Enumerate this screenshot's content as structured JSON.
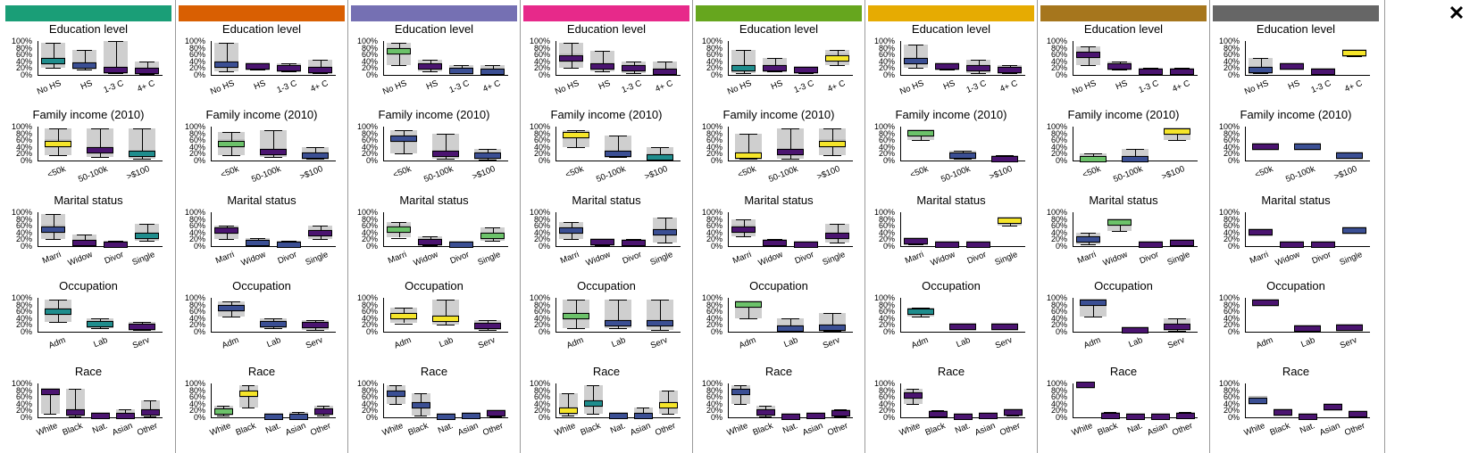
{
  "close_label": "✕",
  "cluster_colors": [
    "#1a9e77",
    "#d95f02",
    "#7570b3",
    "#e7298a",
    "#66a61e",
    "#e6ab02",
    "#a6761d",
    "#666666"
  ],
  "chart_data": {
    "type": "box",
    "y_ticks": [
      "100%",
      "80%",
      "60%",
      "40%",
      "20%",
      "0%"
    ],
    "ylim": [
      0,
      100
    ],
    "row_titles": [
      "Education level",
      "Family income (2010)",
      "Marital status",
      "Occupation",
      "Race"
    ],
    "categories": [
      [
        "No HS",
        "HS",
        "1-3 C",
        "4+ C"
      ],
      [
        "<50k",
        "50-100k",
        ">$100"
      ],
      [
        "Marri",
        "Widow",
        "Divor",
        "Single"
      ],
      [
        "Adm",
        "Lab",
        "Serv"
      ],
      [
        "White",
        "Black",
        "Nat.",
        "Asian",
        "Other"
      ]
    ],
    "highlight_colors": {
      "teal": "#1f8d8d",
      "blue": "#3b4f94",
      "yellow": "#f5e52a",
      "purple": "#4b1470",
      "green": "#6cc26a"
    },
    "panels": [
      [
        [
          [
            40,
            20,
            95,
            "teal"
          ],
          [
            28,
            15,
            75,
            "blue"
          ],
          [
            15,
            5,
            100,
            "purple"
          ],
          [
            12,
            3,
            40,
            "purple"
          ]
        ],
        [
          [
            50,
            15,
            95,
            "yellow"
          ],
          [
            30,
            10,
            95,
            "purple"
          ],
          [
            20,
            5,
            95,
            "teal"
          ]
        ],
        [
          [
            50,
            20,
            95,
            "blue"
          ],
          [
            8,
            2,
            35,
            "purple"
          ],
          [
            5,
            1,
            15,
            "purple"
          ],
          [
            30,
            15,
            65,
            "teal"
          ]
        ],
        [
          [
            60,
            30,
            95,
            "teal"
          ],
          [
            22,
            10,
            40,
            "teal"
          ],
          [
            15,
            5,
            30,
            "purple"
          ]
        ],
        [
          [
            75,
            10,
            85,
            "purple"
          ],
          [
            15,
            3,
            85,
            "purple"
          ],
          [
            3,
            1,
            5,
            "purple"
          ],
          [
            3,
            1,
            25,
            "purple"
          ],
          [
            15,
            2,
            50,
            "purple"
          ]
        ]
      ],
      [
        [
          [
            30,
            10,
            95,
            "blue"
          ],
          [
            25,
            15,
            35,
            "purple"
          ],
          [
            20,
            10,
            35,
            "purple"
          ],
          [
            15,
            5,
            45,
            "purple"
          ]
        ],
        [
          [
            50,
            15,
            85,
            "green"
          ],
          [
            25,
            10,
            90,
            "purple"
          ],
          [
            15,
            5,
            40,
            "blue"
          ]
        ],
        [
          [
            45,
            20,
            60,
            "purple"
          ],
          [
            8,
            2,
            25,
            "blue"
          ],
          [
            5,
            1,
            15,
            "blue"
          ],
          [
            38,
            20,
            60,
            "purple"
          ]
        ],
        [
          [
            70,
            45,
            90,
            "blue"
          ],
          [
            22,
            10,
            40,
            "blue"
          ],
          [
            20,
            5,
            35,
            "purple"
          ]
        ],
        [
          [
            18,
            5,
            35,
            "green"
          ],
          [
            70,
            30,
            95,
            "yellow"
          ],
          [
            2,
            0,
            5,
            "blue"
          ],
          [
            2,
            0,
            15,
            "blue"
          ],
          [
            18,
            5,
            35,
            "purple"
          ]
        ]
      ],
      [
        [
          [
            70,
            30,
            95,
            "green"
          ],
          [
            25,
            10,
            45,
            "purple"
          ],
          [
            12,
            5,
            30,
            "blue"
          ],
          [
            10,
            2,
            30,
            "blue"
          ]
        ],
        [
          [
            65,
            20,
            90,
            "blue"
          ],
          [
            20,
            5,
            80,
            "purple"
          ],
          [
            15,
            3,
            35,
            "blue"
          ]
        ],
        [
          [
            50,
            25,
            70,
            "green"
          ],
          [
            12,
            3,
            30,
            "purple"
          ],
          [
            5,
            1,
            10,
            "blue"
          ],
          [
            30,
            15,
            55,
            "green"
          ]
        ],
        [
          [
            45,
            25,
            70,
            "yellow"
          ],
          [
            38,
            20,
            95,
            "yellow"
          ],
          [
            18,
            5,
            35,
            "purple"
          ]
        ],
        [
          [
            70,
            40,
            95,
            "blue"
          ],
          [
            35,
            5,
            70,
            "blue"
          ],
          [
            2,
            0,
            5,
            "blue"
          ],
          [
            3,
            0,
            8,
            "blue"
          ],
          [
            12,
            2,
            20,
            "purple"
          ]
        ]
      ],
      [
        [
          [
            50,
            20,
            95,
            "purple"
          ],
          [
            25,
            10,
            70,
            "purple"
          ],
          [
            20,
            5,
            40,
            "purple"
          ],
          [
            8,
            2,
            40,
            "purple"
          ]
        ],
        [
          [
            75,
            40,
            90,
            "yellow"
          ],
          [
            20,
            10,
            75,
            "blue"
          ],
          [
            10,
            3,
            40,
            "teal"
          ]
        ],
        [
          [
            45,
            20,
            70,
            "blue"
          ],
          [
            12,
            3,
            20,
            "purple"
          ],
          [
            8,
            2,
            20,
            "purple"
          ],
          [
            40,
            10,
            85,
            "blue"
          ]
        ],
        [
          [
            45,
            10,
            95,
            "green"
          ],
          [
            25,
            10,
            95,
            "blue"
          ],
          [
            25,
            5,
            95,
            "blue"
          ]
        ],
        [
          [
            20,
            5,
            70,
            "yellow"
          ],
          [
            40,
            10,
            95,
            "teal"
          ],
          [
            3,
            0,
            8,
            "blue"
          ],
          [
            3,
            0,
            30,
            "blue"
          ],
          [
            35,
            10,
            80,
            "yellow"
          ]
        ]
      ],
      [
        [
          [
            20,
            5,
            75,
            "teal"
          ],
          [
            20,
            10,
            50,
            "purple"
          ],
          [
            15,
            5,
            25,
            "purple"
          ],
          [
            50,
            30,
            75,
            "yellow"
          ]
        ],
        [
          [
            15,
            5,
            80,
            "yellow"
          ],
          [
            25,
            5,
            95,
            "purple"
          ],
          [
            50,
            15,
            95,
            "yellow"
          ]
        ],
        [
          [
            50,
            30,
            80,
            "purple"
          ],
          [
            10,
            2,
            20,
            "purple"
          ],
          [
            5,
            1,
            10,
            "purple"
          ],
          [
            30,
            10,
            65,
            "purple"
          ]
        ],
        [
          [
            80,
            40,
            90,
            "green"
          ],
          [
            10,
            2,
            40,
            "blue"
          ],
          [
            12,
            2,
            55,
            "blue"
          ]
        ],
        [
          [
            75,
            40,
            95,
            "blue"
          ],
          [
            15,
            3,
            35,
            "purple"
          ],
          [
            2,
            0,
            3,
            "purple"
          ],
          [
            5,
            0,
            10,
            "purple"
          ],
          [
            12,
            3,
            25,
            "purple"
          ]
        ]
      ],
      [
        [
          [
            40,
            20,
            90,
            "blue"
          ],
          [
            25,
            15,
            35,
            "purple"
          ],
          [
            20,
            5,
            45,
            "purple"
          ],
          [
            15,
            5,
            30,
            "purple"
          ]
        ],
        [
          [
            80,
            60,
            85,
            "green"
          ],
          [
            15,
            5,
            30,
            "blue"
          ],
          [
            5,
            1,
            15,
            "purple"
          ]
        ],
        [
          [
            15,
            5,
            20,
            "purple"
          ],
          [
            5,
            1,
            10,
            "purple"
          ],
          [
            3,
            0,
            5,
            "purple"
          ],
          [
            75,
            60,
            80,
            "yellow"
          ]
        ],
        [
          [
            60,
            45,
            70,
            "teal"
          ],
          [
            15,
            10,
            20,
            "purple"
          ],
          [
            15,
            10,
            25,
            "purple"
          ]
        ],
        [
          [
            65,
            40,
            85,
            "purple"
          ],
          [
            10,
            3,
            20,
            "purple"
          ],
          [
            1,
            0,
            2,
            "purple"
          ],
          [
            3,
            0,
            8,
            "purple"
          ],
          [
            15,
            5,
            25,
            "purple"
          ]
        ]
      ],
      [
        [
          [
            60,
            30,
            85,
            "purple"
          ],
          [
            25,
            15,
            40,
            "purple"
          ],
          [
            10,
            3,
            20,
            "purple"
          ],
          [
            10,
            3,
            20,
            "purple"
          ]
        ],
        [
          [
            5,
            1,
            20,
            "green"
          ],
          [
            5,
            1,
            35,
            "blue"
          ],
          [
            85,
            60,
            95,
            "yellow"
          ]
        ],
        [
          [
            20,
            5,
            40,
            "blue"
          ],
          [
            70,
            45,
            80,
            "green"
          ],
          [
            3,
            0,
            5,
            "purple"
          ],
          [
            8,
            2,
            15,
            "purple"
          ]
        ],
        [
          [
            85,
            45,
            95,
            "blue"
          ],
          [
            5,
            0,
            10,
            "purple"
          ],
          [
            15,
            3,
            40,
            "purple"
          ]
        ],
        [
          [
            95,
            90,
            98,
            "purple"
          ],
          [
            5,
            0,
            15,
            "purple"
          ],
          [
            1,
            0,
            2,
            "purple"
          ],
          [
            2,
            0,
            5,
            "purple"
          ],
          [
            5,
            0,
            15,
            "purple"
          ]
        ]
      ],
      [
        [
          [
            15,
            5,
            50,
            "blue"
          ],
          [
            25,
            20,
            30,
            "purple"
          ],
          [
            10,
            5,
            15,
            "purple"
          ],
          [
            65,
            55,
            75,
            "yellow"
          ]
        ],
        [
          [
            40,
            35,
            45,
            "purple"
          ],
          [
            40,
            35,
            45,
            "blue"
          ],
          [
            15,
            10,
            20,
            "blue"
          ]
        ],
        [
          [
            40,
            35,
            45,
            "purple"
          ],
          [
            5,
            3,
            8,
            "purple"
          ],
          [
            3,
            1,
            5,
            "purple"
          ],
          [
            45,
            40,
            50,
            "blue"
          ]
        ],
        [
          [
            85,
            80,
            88,
            "purple"
          ],
          [
            8,
            5,
            10,
            "purple"
          ],
          [
            12,
            8,
            15,
            "purple"
          ]
        ],
        [
          [
            50,
            45,
            55,
            "blue"
          ],
          [
            15,
            10,
            20,
            "purple"
          ],
          [
            1,
            0,
            2,
            "purple"
          ],
          [
            30,
            28,
            32,
            "purple"
          ],
          [
            10,
            5,
            15,
            "purple"
          ]
        ]
      ]
    ]
  }
}
